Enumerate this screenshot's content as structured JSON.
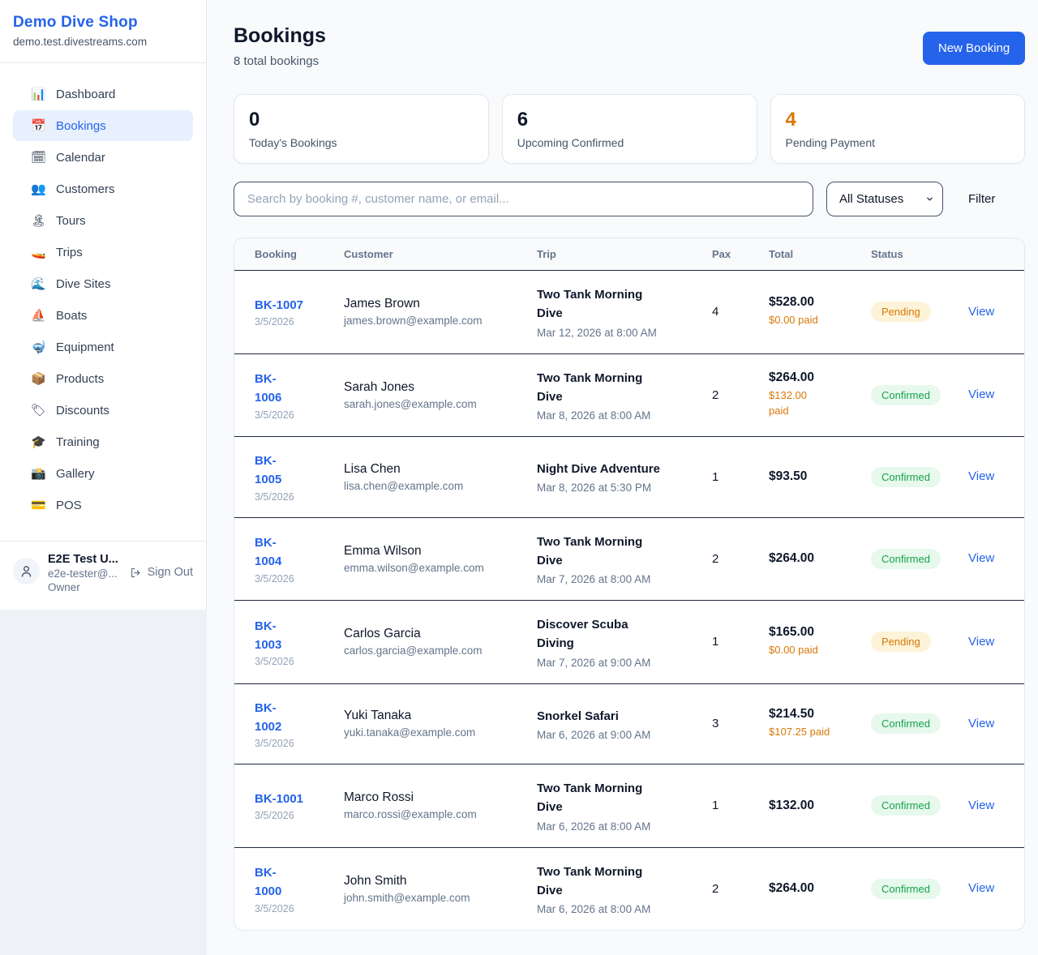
{
  "sidebar": {
    "brand": {
      "name": "Demo Dive Shop",
      "domain": "demo.test.divestreams.com"
    },
    "items": [
      {
        "icon": "bar-chart-icon",
        "glyph": "📊",
        "label": "Dashboard",
        "active": false
      },
      {
        "icon": "calendar-page-icon",
        "glyph": "📅",
        "label": "Bookings",
        "active": true
      },
      {
        "icon": "spiral-calendar-icon",
        "glyph": "🗓",
        "label": "Calendar",
        "active": false
      },
      {
        "icon": "people-icon",
        "glyph": "👥",
        "label": "Customers",
        "active": false
      },
      {
        "icon": "island-icon",
        "glyph": "🏝",
        "label": "Tours",
        "active": false
      },
      {
        "icon": "speedboat-icon",
        "glyph": "🚤",
        "label": "Trips",
        "active": false
      },
      {
        "icon": "wave-icon",
        "glyph": "🌊",
        "label": "Dive Sites",
        "active": false
      },
      {
        "icon": "sailboat-icon",
        "glyph": "⛵",
        "label": "Boats",
        "active": false
      },
      {
        "icon": "diving-mask-icon",
        "glyph": "🤿",
        "label": "Equipment",
        "active": false
      },
      {
        "icon": "package-icon",
        "glyph": "📦",
        "label": "Products",
        "active": false
      },
      {
        "icon": "tag-icon",
        "glyph": "🏷",
        "label": "Discounts",
        "active": false
      },
      {
        "icon": "graduation-cap-icon",
        "glyph": "🎓",
        "label": "Training",
        "active": false
      },
      {
        "icon": "camera-icon",
        "glyph": "📸",
        "label": "Gallery",
        "active": false
      },
      {
        "icon": "credit-card-icon",
        "glyph": "💳",
        "label": "POS",
        "active": false
      }
    ],
    "user": {
      "name": "E2E Test U...",
      "email": "e2e-tester@...",
      "role": "Owner",
      "sign_out_label": "Sign Out"
    }
  },
  "header": {
    "title": "Bookings",
    "subtitle": "8 total bookings",
    "new_booking_label": "New Booking"
  },
  "stats": [
    {
      "value": "0",
      "label": "Today's Bookings",
      "color": "#0f172a"
    },
    {
      "value": "6",
      "label": "Upcoming Confirmed",
      "color": "#0f172a"
    },
    {
      "value": "4",
      "label": "Pending Payment",
      "color": "#d97706"
    }
  ],
  "filters": {
    "search_placeholder": "Search by booking #, customer name, or email...",
    "status_select_value": "All Statuses",
    "filter_label": "Filter"
  },
  "table": {
    "columns": [
      "Booking",
      "Customer",
      "Trip",
      "Pax",
      "Total",
      "Status"
    ],
    "view_label": "View",
    "rows": [
      {
        "ref": "BK-1007",
        "date": "3/5/2026",
        "customer": "James Brown",
        "email": "james.brown@example.com",
        "trip": "Two Tank Morning\nDive",
        "trip_time": "Mar 12, 2026 at 8:00 AM",
        "pax": "4",
        "total": "$528.00",
        "paid": "$0.00 paid",
        "status": "Pending"
      },
      {
        "ref": "BK-\n1006",
        "date": "3/5/2026",
        "customer": "Sarah Jones",
        "email": "sarah.jones@example.com",
        "trip": "Two Tank Morning\nDive",
        "trip_time": "Mar 8, 2026 at 8:00 AM",
        "pax": "2",
        "total": "$264.00",
        "paid": "$132.00\npaid",
        "status": "Confirmed"
      },
      {
        "ref": "BK-\n1005",
        "date": "3/5/2026",
        "customer": "Lisa Chen",
        "email": "lisa.chen@example.com",
        "trip": "Night Dive Adventure",
        "trip_time": "Mar 8, 2026 at 5:30 PM",
        "pax": "1",
        "total": "$93.50",
        "paid": "",
        "status": "Confirmed"
      },
      {
        "ref": "BK-\n1004",
        "date": "3/5/2026",
        "customer": "Emma Wilson",
        "email": "emma.wilson@example.com",
        "trip": "Two Tank Morning\nDive",
        "trip_time": "Mar 7, 2026 at 8:00 AM",
        "pax": "2",
        "total": "$264.00",
        "paid": "",
        "status": "Confirmed"
      },
      {
        "ref": "BK-\n1003",
        "date": "3/5/2026",
        "customer": "Carlos Garcia",
        "email": "carlos.garcia@example.com",
        "trip": "Discover Scuba\nDiving",
        "trip_time": "Mar 7, 2026 at 9:00 AM",
        "pax": "1",
        "total": "$165.00",
        "paid": "$0.00 paid",
        "status": "Pending"
      },
      {
        "ref": "BK-\n1002",
        "date": "3/5/2026",
        "customer": "Yuki Tanaka",
        "email": "yuki.tanaka@example.com",
        "trip": "Snorkel Safari",
        "trip_time": "Mar 6, 2026 at 9:00 AM",
        "pax": "3",
        "total": "$214.50",
        "paid": "$107.25 paid",
        "status": "Confirmed"
      },
      {
        "ref": "BK-1001",
        "date": "3/5/2026",
        "customer": "Marco Rossi",
        "email": "marco.rossi@example.com",
        "trip": "Two Tank Morning\nDive",
        "trip_time": "Mar 6, 2026 at 8:00 AM",
        "pax": "1",
        "total": "$132.00",
        "paid": "",
        "status": "Confirmed"
      },
      {
        "ref": "BK-\n1000",
        "date": "3/5/2026",
        "customer": "John Smith",
        "email": "john.smith@example.com",
        "trip": "Two Tank Morning\nDive",
        "trip_time": "Mar 6, 2026 at 8:00 AM",
        "pax": "2",
        "total": "$264.00",
        "paid": "",
        "status": "Confirmed"
      }
    ]
  },
  "colors": {
    "accent_blue": "#2563eb",
    "pending_text": "#d97706",
    "pending_bg": "#fdf3d8",
    "confirmed_text": "#16a34a",
    "confirmed_bg": "#e7f8ed",
    "paid_orange": "#d97706"
  }
}
